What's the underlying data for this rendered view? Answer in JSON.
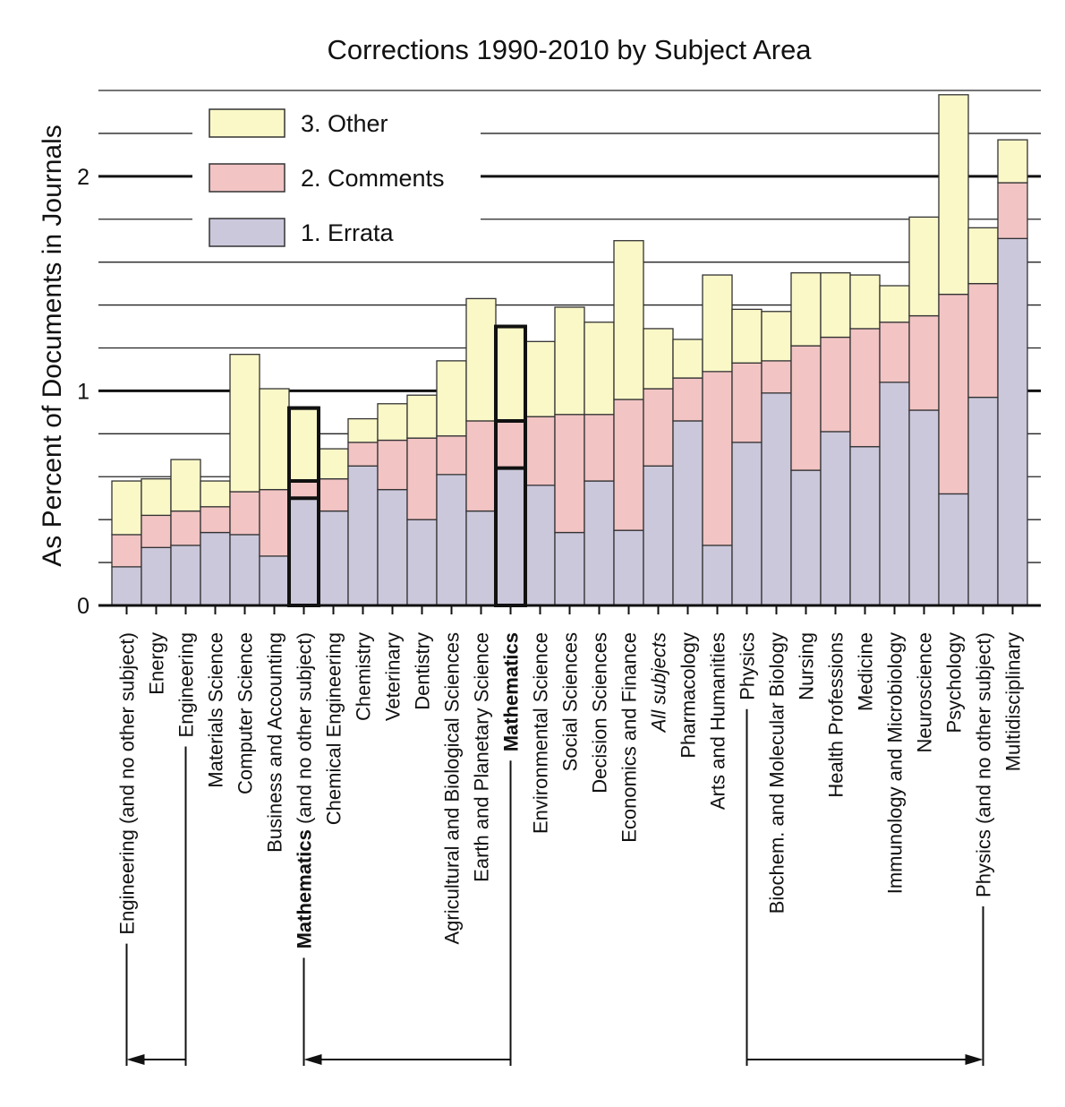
{
  "chart_data": {
    "type": "stacked_bar",
    "title": "Corrections 1990-2010 by Subject Area",
    "y_label": "As Percent of Documents in Journals",
    "categories": [
      "Engineering (and no other subject)",
      "Energy",
      "Engineering",
      "Materials Science",
      "Computer Science",
      "Business and Accounting",
      "Mathematics (and no other subject)",
      "Chemical Engineering",
      "Chemistry",
      "Veterinary",
      "Dentistry",
      "Agricultural and Biological Sciences",
      "Earth and Planetary Science",
      "Mathematics",
      "Environmental Science",
      "Social Sciences",
      "Decision Sciences",
      "Economics and Finance",
      "All subjects",
      "Pharmacology",
      "Arts and Humanities",
      "Physics",
      "Biochem. and Molecular Biology",
      "Nursing",
      "Health Professions",
      "Medicine",
      "Immunology and Microbiology",
      "Neuroscience",
      "Psychology",
      "Physics (and no other subject)",
      "Multidisciplinary"
    ],
    "series": [
      {
        "name": "1. Errata",
        "color": "#cbc8dc",
        "values": [
          0.18,
          0.27,
          0.28,
          0.34,
          0.33,
          0.23,
          0.5,
          0.44,
          0.65,
          0.54,
          0.4,
          0.61,
          0.44,
          0.64,
          0.56,
          0.34,
          0.58,
          0.35,
          0.65,
          0.86,
          0.28,
          0.76,
          0.99,
          0.63,
          0.81,
          0.74,
          1.04,
          0.91,
          0.52,
          0.97,
          1.71
        ]
      },
      {
        "name": "2. Comments",
        "color": "#f2c4c4",
        "values": [
          0.15,
          0.15,
          0.16,
          0.12,
          0.2,
          0.31,
          0.08,
          0.15,
          0.11,
          0.23,
          0.38,
          0.18,
          0.42,
          0.22,
          0.32,
          0.55,
          0.31,
          0.61,
          0.36,
          0.2,
          0.81,
          0.37,
          0.15,
          0.58,
          0.44,
          0.55,
          0.28,
          0.44,
          0.93,
          0.53,
          0.26
        ]
      },
      {
        "name": "3. Other",
        "color": "#fbf8c8",
        "values": [
          0.25,
          0.17,
          0.24,
          0.12,
          0.64,
          0.47,
          0.34,
          0.14,
          0.11,
          0.17,
          0.2,
          0.35,
          0.57,
          0.44,
          0.35,
          0.5,
          0.43,
          0.74,
          0.28,
          0.18,
          0.45,
          0.25,
          0.23,
          0.34,
          0.3,
          0.25,
          0.17,
          0.46,
          0.93,
          0.26,
          0.2
        ]
      }
    ],
    "ylim": [
      0,
      2.4
    ],
    "yticks": [
      0,
      1,
      2
    ],
    "minor_yticks": [
      0.2,
      0.4,
      0.6,
      0.8,
      1.2,
      1.4,
      1.6,
      1.8,
      2.2,
      2.4
    ],
    "grid": true,
    "legend": "upper left",
    "highlighted": [
      6,
      13
    ],
    "italic": [
      18
    ],
    "brackets": [
      {
        "from": 2,
        "to": 0
      },
      {
        "from": 13,
        "to": 6
      },
      {
        "from": 21,
        "to": 29
      }
    ]
  }
}
